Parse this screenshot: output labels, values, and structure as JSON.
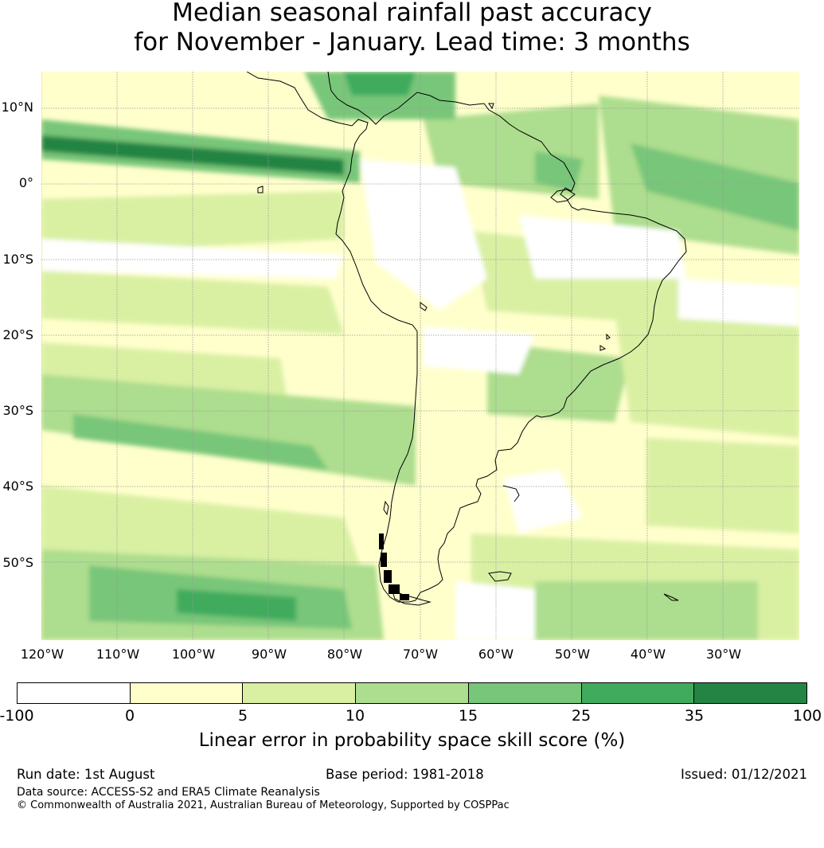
{
  "title": {
    "line1": "Median seasonal rainfall past accuracy",
    "line2": "for November - January. Lead time: 3 months"
  },
  "map": {
    "region": "South America",
    "lat_labels": [
      "10°N",
      "0°",
      "10°S",
      "20°S",
      "30°S",
      "40°S",
      "50°S"
    ],
    "lon_labels": [
      "120°W",
      "110°W",
      "100°W",
      "90°W",
      "80°W",
      "70°W",
      "60°W",
      "50°W",
      "40°W",
      "30°W"
    ],
    "colors": {
      "ocean_base": "#ffffcc",
      "coastline": "#000000",
      "gridline": "#999999"
    }
  },
  "colorbar": {
    "ticks": [
      "-100",
      "0",
      "5",
      "10",
      "15",
      "25",
      "35",
      "100"
    ],
    "colors": [
      "#ffffff",
      "#ffffcc",
      "#d9f0a3",
      "#addd8e",
      "#78c679",
      "#41ab5d",
      "#238443"
    ],
    "label": "Linear error in probability space skill score (%)"
  },
  "footer": {
    "run_date": "Run date: 1st August",
    "base_period": "Base period: 1981-2018",
    "issued": "Issued: 01/12/2021",
    "data_source": "Data source: ACCESS-S2 and ERA5 Climate Reanalysis",
    "copyright": "© Commonwealth of Australia 2021, Australian Bureau of Meteorology, Supported by COSPPac"
  }
}
